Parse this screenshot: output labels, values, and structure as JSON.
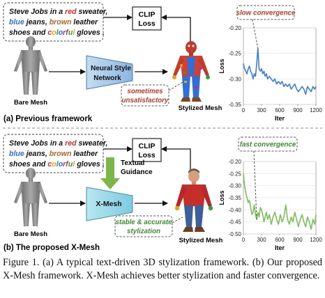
{
  "panel_a": {
    "prompt_lines": [
      [
        {
          "t": "Steve Jobs in a ",
          "c": "#111111"
        },
        {
          "t": "red",
          "c": "#d0312d"
        },
        {
          "t": " sweater,",
          "c": "#111111"
        }
      ],
      [
        {
          "t": "blue",
          "c": "#2f6fd6"
        },
        {
          "t": " jeans, ",
          "c": "#111111"
        },
        {
          "t": "brown",
          "c": "#b0652a"
        },
        {
          "t": " leather",
          "c": "#111111"
        }
      ],
      [
        {
          "t": "shoes and ",
          "c": "#111111"
        },
        {
          "t": "c",
          "c": "#d0312d"
        },
        {
          "t": "o",
          "c": "#e8a21a"
        },
        {
          "t": "l",
          "c": "#2f9e44"
        },
        {
          "t": "o",
          "c": "#2f6fd6"
        },
        {
          "t": "r",
          "c": "#7b3fb3"
        },
        {
          "t": "f",
          "c": "#d0312d"
        },
        {
          "t": "u",
          "c": "#2f9e44"
        },
        {
          "t": "l",
          "c": "#e8a21a"
        },
        {
          "t": " gloves .",
          "c": "#111111"
        }
      ]
    ],
    "clip_line1": "CLIP",
    "clip_line2": "Loss",
    "network_line1": "Neural Style",
    "network_line2": "Network",
    "bare_label": "Bare Mesh",
    "stylized_label": "Stylized Mesh",
    "note_line1": "sometimes",
    "note_line2": "unsatisfactory",
    "panel_label": "(a) Previous framework"
  },
  "panel_b": {
    "prompt_lines": [
      [
        {
          "t": "Steve Jobs in a ",
          "c": "#111111"
        },
        {
          "t": "red",
          "c": "#d0312d"
        },
        {
          "t": " sweater,",
          "c": "#111111"
        }
      ],
      [
        {
          "t": "blue",
          "c": "#2f6fd6"
        },
        {
          "t": " jeans, ",
          "c": "#111111"
        },
        {
          "t": "brown",
          "c": "#b0652a"
        },
        {
          "t": " leather",
          "c": "#111111"
        }
      ],
      [
        {
          "t": "shoes and ",
          "c": "#111111"
        },
        {
          "t": "c",
          "c": "#d0312d"
        },
        {
          "t": "o",
          "c": "#e8a21a"
        },
        {
          "t": "l",
          "c": "#2f9e44"
        },
        {
          "t": "o",
          "c": "#2f6fd6"
        },
        {
          "t": "r",
          "c": "#7b3fb3"
        },
        {
          "t": "f",
          "c": "#d0312d"
        },
        {
          "t": "u",
          "c": "#2f9e44"
        },
        {
          "t": "l",
          "c": "#e8a21a"
        },
        {
          "t": " gloves .",
          "c": "#111111"
        }
      ]
    ],
    "clip_line1": "CLIP",
    "clip_line2": "Loss",
    "guidance_line1": "Textual",
    "guidance_line2": "Guidance",
    "network_label": "X-Mesh",
    "bare_label": "Bare Mesh",
    "stylized_label": "Stylized Mesh",
    "note_line1": "stable & accurate",
    "note_line2": "stylization",
    "panel_label": "(b) The proposed X-Mesh"
  },
  "colors": {
    "network_a_fill": "#9fc3e8",
    "network_b_fill": "#8fd3e6",
    "guidance_arrow": "#7ab648",
    "note_a": "#c0392b",
    "note_b": "#3a8f2f",
    "curve_a": "#3a7fd5",
    "curve_b": "#7cbf5a"
  },
  "chart_data": [
    {
      "type": "line",
      "title": "",
      "annotation": "slow convergence",
      "xlabel": "Iter",
      "ylabel": "Loss",
      "xlim": [
        0,
        1200
      ],
      "ylim": [
        -0.35,
        -0.2
      ],
      "xticks": [
        0,
        300,
        600,
        900,
        1200
      ],
      "yticks": [
        -0.2,
        -0.25,
        -0.3,
        -0.35
      ],
      "x": [
        0,
        20,
        40,
        60,
        80,
        100,
        120,
        140,
        160,
        180,
        200,
        220,
        240,
        260,
        280,
        300,
        320,
        340,
        360,
        380,
        400,
        430,
        460,
        490,
        520,
        550,
        580,
        610,
        640,
        670,
        700,
        730,
        760,
        790,
        820,
        850,
        880,
        910,
        940,
        970,
        1000,
        1030,
        1060,
        1090,
        1120,
        1150,
        1180,
        1200
      ],
      "y": [
        -0.27,
        -0.28,
        -0.285,
        -0.29,
        -0.28,
        -0.275,
        -0.285,
        -0.29,
        -0.3,
        -0.29,
        -0.295,
        -0.27,
        -0.24,
        -0.28,
        -0.285,
        -0.28,
        -0.29,
        -0.285,
        -0.295,
        -0.29,
        -0.3,
        -0.295,
        -0.3,
        -0.305,
        -0.3,
        -0.31,
        -0.305,
        -0.31,
        -0.305,
        -0.315,
        -0.31,
        -0.315,
        -0.31,
        -0.32,
        -0.315,
        -0.31,
        -0.32,
        -0.325,
        -0.32,
        -0.315,
        -0.32,
        -0.33,
        -0.315,
        -0.32,
        -0.325,
        -0.315,
        -0.32,
        -0.315
      ]
    },
    {
      "type": "line",
      "title": "",
      "annotation": "fast convergence",
      "xlabel": "Iter",
      "ylabel": "Loss",
      "xlim": [
        0,
        1200
      ],
      "ylim": [
        -0.5,
        -0.2
      ],
      "xticks": [
        0,
        300,
        600,
        900,
        1200
      ],
      "yticks": [
        -0.2,
        -0.25,
        -0.3,
        -0.35,
        -0.4,
        -0.45,
        -0.5
      ],
      "x": [
        0,
        20,
        40,
        60,
        80,
        100,
        120,
        140,
        160,
        180,
        200,
        220,
        240,
        260,
        280,
        300,
        320,
        340,
        360,
        380,
        400,
        430,
        460,
        490,
        520,
        550,
        580,
        610,
        640,
        670,
        700,
        730,
        760,
        790,
        820,
        850,
        880,
        910,
        940,
        970,
        1000,
        1030,
        1060,
        1090,
        1120,
        1150,
        1180,
        1200
      ],
      "y": [
        -0.25,
        -0.3,
        -0.33,
        -0.35,
        -0.37,
        -0.36,
        -0.39,
        -0.42,
        -0.41,
        -0.38,
        -0.42,
        -0.44,
        -0.41,
        -0.43,
        -0.39,
        -0.4,
        -0.42,
        -0.45,
        -0.43,
        -0.41,
        -0.44,
        -0.42,
        -0.46,
        -0.43,
        -0.41,
        -0.44,
        -0.46,
        -0.42,
        -0.45,
        -0.43,
        -0.38,
        -0.44,
        -0.46,
        -0.43,
        -0.45,
        -0.41,
        -0.44,
        -0.47,
        -0.44,
        -0.42,
        -0.45,
        -0.47,
        -0.43,
        -0.45,
        -0.48,
        -0.44,
        -0.46,
        -0.42
      ]
    }
  ],
  "caption": "Figure 1. (a) A typical text-driven 3D stylization framework. (b) Our proposed X-Mesh framework. X-Mesh achieves better stylization and faster convergence."
}
